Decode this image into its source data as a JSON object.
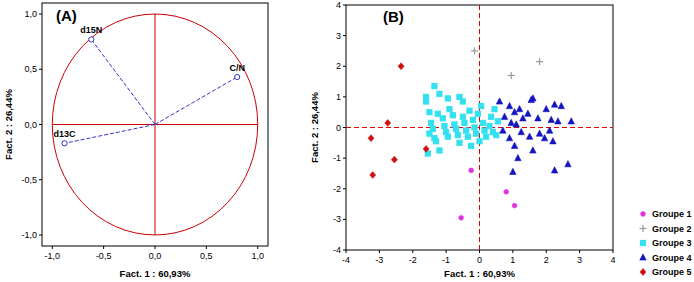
{
  "chart_data": [
    {
      "type": "correlation_circle",
      "title": "(A)",
      "x_label": "Fact. 1  : 60,93%",
      "y_label": "Fact. 2  : 26,44%",
      "xlim": [
        -1.1,
        1.1
      ],
      "ylim": [
        -1.1,
        1.1
      ],
      "xticks": [
        {
          "value": -1,
          "label": "-1,0"
        },
        {
          "value": -0.5,
          "label": "-0,5"
        },
        {
          "value": 0,
          "label": "0,0"
        },
        {
          "value": 0.5,
          "label": "0,5"
        },
        {
          "value": 1,
          "label": "1,0"
        }
      ],
      "yticks": [
        {
          "value": -1,
          "label": "-1,0"
        },
        {
          "value": -0.5,
          "label": "-0,5"
        },
        {
          "value": 0,
          "label": "0,0"
        },
        {
          "value": 0.5,
          "label": "0,5"
        },
        {
          "value": 1,
          "label": "1,0"
        }
      ],
      "grid": false,
      "series": [
        {
          "name": "d15N",
          "color": "#3333cc",
          "marker": "circle",
          "line_style": "dashed",
          "x": [
            -0.62
          ],
          "values": [
            0.77
          ]
        },
        {
          "name": "C/N",
          "color": "#3333cc",
          "marker": "circle",
          "line_style": "dashed",
          "x": [
            0.8
          ],
          "values": [
            0.43
          ]
        },
        {
          "name": "d13C",
          "color": "#3333cc",
          "marker": "circle",
          "line_style": "dashed",
          "x": [
            -0.88
          ],
          "values": [
            -0.17
          ]
        }
      ]
    },
    {
      "type": "scatter",
      "title": "(B)",
      "x_label": "Fact. 1 : 60,93%",
      "y_label": "Fact. 2 : 26,44%",
      "xlim": [
        -4,
        4
      ],
      "ylim": [
        -4,
        4
      ],
      "xticks": [
        -4,
        -3,
        -2,
        -1,
        0,
        1,
        2,
        3,
        4
      ],
      "yticks": [
        -4,
        -3,
        -2,
        -1,
        0,
        1,
        2,
        3,
        4
      ],
      "grid": false,
      "legend": "right",
      "series": [
        {
          "name": "Groupe 1",
          "color": "#e030e0",
          "marker": "circle",
          "x": [
            -0.25,
            -0.55,
            0.8,
            1.05
          ],
          "values": [
            -1.4,
            -2.95,
            -2.1,
            -2.55
          ]
        },
        {
          "name": "Groupe 2",
          "color": "#999999",
          "marker": "plus",
          "x": [
            -0.15,
            0.95,
            1.8
          ],
          "values": [
            2.5,
            1.7,
            2.15
          ]
        },
        {
          "name": "Groupe 3",
          "color": "#33e0f0",
          "marker": "square",
          "x": [
            -1.6,
            -1.6,
            -1.35,
            -1.2,
            -0.95,
            -0.6,
            -0.5,
            -1.5,
            -1.45,
            -1.4,
            -1.5,
            -1.35,
            -1.25,
            -1.1,
            -1.05,
            -1.0,
            -0.95,
            -0.9,
            -0.8,
            -0.75,
            -0.7,
            -0.65,
            -0.6,
            -0.5,
            -0.45,
            -0.4,
            -0.35,
            -0.3,
            -0.2,
            -0.15,
            -0.1,
            -0.05,
            0.05,
            0.1,
            0.15,
            0.2,
            0.3,
            0.35,
            0.4,
            0.45,
            0.5,
            0.55,
            -1.2,
            -1.55,
            -0.25,
            0.0,
            -1.3
          ],
          "values": [
            1.0,
            0.85,
            1.35,
            1.1,
            0.95,
            1.0,
            0.85,
            0.5,
            0.15,
            -0.05,
            -0.2,
            -0.35,
            0.45,
            0.3,
            0.05,
            -0.15,
            -0.3,
            0.6,
            0.4,
            0.1,
            -0.05,
            -0.25,
            -0.5,
            0.35,
            0.15,
            -0.1,
            -0.3,
            0.55,
            0.25,
            0.0,
            -0.2,
            0.45,
            0.7,
            0.15,
            -0.1,
            -0.3,
            0.05,
            0.35,
            -0.15,
            0.6,
            -0.25,
            0.2,
            -0.75,
            -0.85,
            -0.6,
            -0.45,
            -0.45
          ]
        },
        {
          "name": "Groupe 4",
          "color": "#1414c0",
          "marker": "triangle",
          "x": [
            0.6,
            0.9,
            1.05,
            1.2,
            1.55,
            1.6,
            0.75,
            0.95,
            1.1,
            1.3,
            1.45,
            1.75,
            2.0,
            2.25,
            2.45,
            2.15,
            2.35,
            2.75,
            0.7,
            0.9,
            1.05,
            1.25,
            1.5,
            1.8,
            1.95,
            2.1,
            2.2,
            1.6,
            1.15,
            1.0,
            2.25,
            2.65
          ],
          "values": [
            0.85,
            0.7,
            0.5,
            0.6,
            0.9,
            0.95,
            0.35,
            0.15,
            0.1,
            0.3,
            0.45,
            0.3,
            0.6,
            0.75,
            0.7,
            0.25,
            0.2,
            0.2,
            -0.1,
            -0.35,
            -0.6,
            -0.15,
            -0.3,
            -0.2,
            -0.35,
            -0.1,
            -0.45,
            -0.75,
            -1.0,
            -1.45,
            -1.4,
            -1.2
          ]
        },
        {
          "name": "Groupe 5",
          "color": "#d01010",
          "marker": "diamond",
          "x": [
            -2.35,
            -2.75,
            -3.25,
            -2.55,
            -3.2,
            -1.6
          ],
          "values": [
            2.0,
            0.15,
            -0.35,
            -1.05,
            -1.55,
            -0.7
          ]
        }
      ]
    }
  ]
}
